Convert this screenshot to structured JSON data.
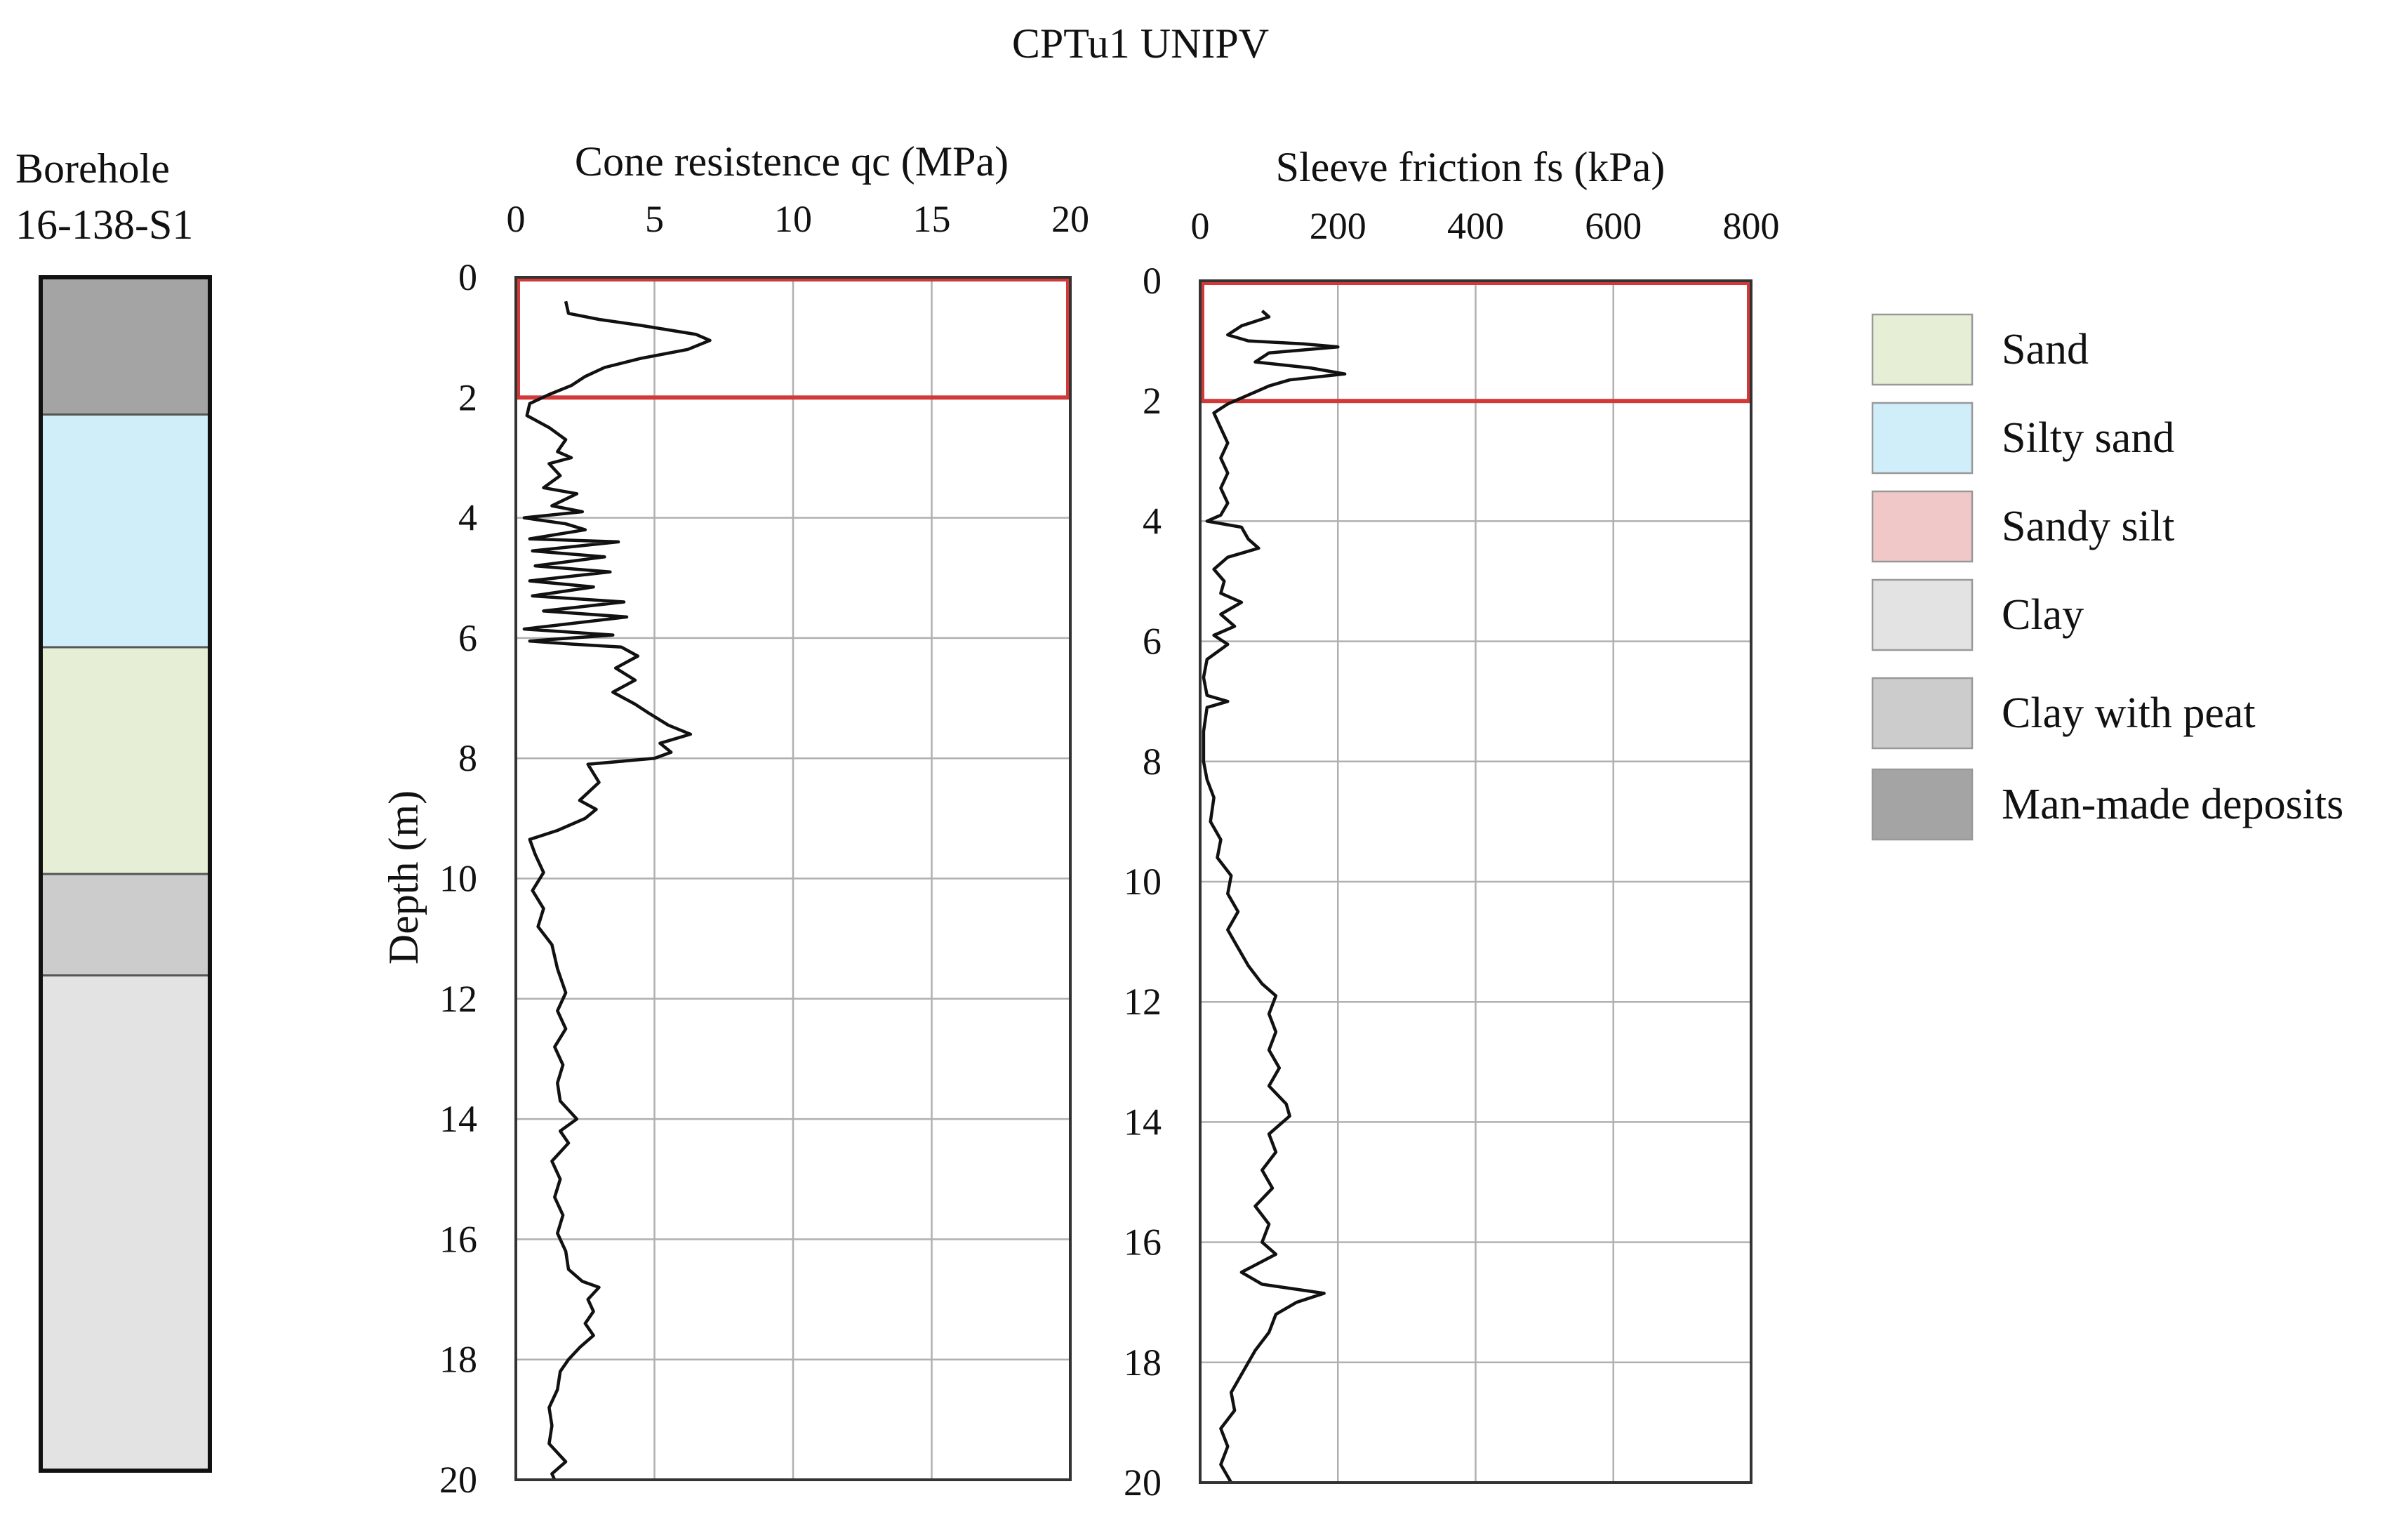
{
  "figure_title": "CPTu1 UNIPV",
  "colors": {
    "sand": "#e6efd5",
    "silty_sand": "#cfeef9",
    "sandy_silt": "#f1c8c8",
    "clay": "#e3e3e3",
    "clay_with_peat": "#cccccc",
    "man_made_deposits": "#a4a4a4",
    "highlight_box": "#d23a3a",
    "trace": "#111111",
    "grid": "#b0b0b0"
  },
  "chart_data": [
    {
      "type": "line",
      "title": "Cone resistence qc (MPa)",
      "xlabel": "",
      "ylabel": "Depth (m)",
      "xlim": [
        0,
        20
      ],
      "ylim": [
        0,
        20
      ],
      "y_inverted": true,
      "x_ticks": [
        0,
        5,
        10,
        15,
        20
      ],
      "y_ticks": [
        0,
        2,
        4,
        6,
        8,
        10,
        12,
        14,
        16,
        18,
        20
      ],
      "grid": true,
      "highlight_box": {
        "x": [
          0,
          20
        ],
        "y": [
          0,
          2
        ]
      },
      "series": [
        {
          "values": [
            [
              1.8,
              0.4
            ],
            [
              1.9,
              0.6
            ],
            [
              3.0,
              0.7
            ],
            [
              4.5,
              0.8
            ],
            [
              6.5,
              0.95
            ],
            [
              7.0,
              1.05
            ],
            [
              6.2,
              1.2
            ],
            [
              4.5,
              1.35
            ],
            [
              3.2,
              1.5
            ],
            [
              2.5,
              1.65
            ],
            [
              2.0,
              1.8
            ],
            [
              1.2,
              1.95
            ],
            [
              0.5,
              2.1
            ],
            [
              0.4,
              2.3
            ],
            [
              1.2,
              2.5
            ],
            [
              1.8,
              2.7
            ],
            [
              1.5,
              2.9
            ],
            [
              2.0,
              3.0
            ],
            [
              1.2,
              3.1
            ],
            [
              1.6,
              3.3
            ],
            [
              1.0,
              3.5
            ],
            [
              2.2,
              3.6
            ],
            [
              1.3,
              3.8
            ],
            [
              2.4,
              3.9
            ],
            [
              0.3,
              4.0
            ],
            [
              1.8,
              4.1
            ],
            [
              2.5,
              4.2
            ],
            [
              0.5,
              4.35
            ],
            [
              3.7,
              4.4
            ],
            [
              0.6,
              4.55
            ],
            [
              3.2,
              4.65
            ],
            [
              0.7,
              4.8
            ],
            [
              3.4,
              4.9
            ],
            [
              0.5,
              5.05
            ],
            [
              2.8,
              5.15
            ],
            [
              0.6,
              5.3
            ],
            [
              3.9,
              5.4
            ],
            [
              1.0,
              5.55
            ],
            [
              4.0,
              5.65
            ],
            [
              0.3,
              5.85
            ],
            [
              3.5,
              5.95
            ],
            [
              0.5,
              6.05
            ],
            [
              2.0,
              6.1
            ],
            [
              3.8,
              6.15
            ],
            [
              4.4,
              6.3
            ],
            [
              3.6,
              6.5
            ],
            [
              4.3,
              6.7
            ],
            [
              3.5,
              6.9
            ],
            [
              4.3,
              7.1
            ],
            [
              4.8,
              7.25
            ],
            [
              5.5,
              7.45
            ],
            [
              6.3,
              7.6
            ],
            [
              5.2,
              7.75
            ],
            [
              5.6,
              7.9
            ],
            [
              5.0,
              8.0
            ],
            [
              2.6,
              8.1
            ],
            [
              3.0,
              8.4
            ],
            [
              2.3,
              8.7
            ],
            [
              2.9,
              8.85
            ],
            [
              2.5,
              9.0
            ],
            [
              1.5,
              9.2
            ],
            [
              0.5,
              9.35
            ],
            [
              0.7,
              9.6
            ],
            [
              1.0,
              9.9
            ],
            [
              0.6,
              10.2
            ],
            [
              1.0,
              10.5
            ],
            [
              0.8,
              10.8
            ],
            [
              1.3,
              11.1
            ],
            [
              1.5,
              11.5
            ],
            [
              1.8,
              11.9
            ],
            [
              1.5,
              12.2
            ],
            [
              1.8,
              12.5
            ],
            [
              1.4,
              12.8
            ],
            [
              1.7,
              13.1
            ],
            [
              1.5,
              13.4
            ],
            [
              1.6,
              13.7
            ],
            [
              2.2,
              14.0
            ],
            [
              1.6,
              14.2
            ],
            [
              1.9,
              14.4
            ],
            [
              1.3,
              14.7
            ],
            [
              1.6,
              15.0
            ],
            [
              1.4,
              15.3
            ],
            [
              1.7,
              15.6
            ],
            [
              1.5,
              15.9
            ],
            [
              1.8,
              16.2
            ],
            [
              1.9,
              16.5
            ],
            [
              2.4,
              16.7
            ],
            [
              3.0,
              16.8
            ],
            [
              2.6,
              17.0
            ],
            [
              2.8,
              17.2
            ],
            [
              2.5,
              17.4
            ],
            [
              2.8,
              17.6
            ],
            [
              2.3,
              17.8
            ],
            [
              1.9,
              18.0
            ],
            [
              1.6,
              18.2
            ],
            [
              1.5,
              18.5
            ],
            [
              1.2,
              18.8
            ],
            [
              1.3,
              19.1
            ],
            [
              1.2,
              19.4
            ],
            [
              1.8,
              19.7
            ],
            [
              1.3,
              19.9
            ],
            [
              1.4,
              20.0
            ]
          ]
        }
      ]
    },
    {
      "type": "line",
      "title": "Sleeve friction fs (kPa)",
      "xlabel": "",
      "ylabel": "",
      "xlim": [
        0,
        800
      ],
      "ylim": [
        0,
        20
      ],
      "y_inverted": true,
      "x_ticks": [
        0,
        200,
        400,
        600,
        800
      ],
      "y_ticks": [
        0,
        2,
        4,
        6,
        8,
        10,
        12,
        14,
        16,
        18,
        20
      ],
      "grid": true,
      "highlight_box": {
        "x": [
          0,
          800
        ],
        "y": [
          0,
          2
        ]
      },
      "series": [
        {
          "values": [
            [
              90,
              0.5
            ],
            [
              100,
              0.6
            ],
            [
              60,
              0.75
            ],
            [
              40,
              0.9
            ],
            [
              70,
              1.0
            ],
            [
              150,
              1.05
            ],
            [
              200,
              1.1
            ],
            [
              100,
              1.2
            ],
            [
              80,
              1.35
            ],
            [
              160,
              1.45
            ],
            [
              210,
              1.55
            ],
            [
              130,
              1.65
            ],
            [
              100,
              1.75
            ],
            [
              80,
              1.85
            ],
            [
              60,
              1.95
            ],
            [
              40,
              2.05
            ],
            [
              20,
              2.2
            ],
            [
              30,
              2.45
            ],
            [
              40,
              2.7
            ],
            [
              30,
              2.95
            ],
            [
              40,
              3.2
            ],
            [
              30,
              3.45
            ],
            [
              40,
              3.7
            ],
            [
              30,
              3.9
            ],
            [
              10,
              4.0
            ],
            [
              60,
              4.1
            ],
            [
              70,
              4.3
            ],
            [
              85,
              4.45
            ],
            [
              40,
              4.6
            ],
            [
              20,
              4.8
            ],
            [
              35,
              5.0
            ],
            [
              30,
              5.2
            ],
            [
              60,
              5.35
            ],
            [
              30,
              5.55
            ],
            [
              50,
              5.75
            ],
            [
              20,
              5.9
            ],
            [
              40,
              6.05
            ],
            [
              10,
              6.3
            ],
            [
              5,
              6.6
            ],
            [
              10,
              6.9
            ],
            [
              40,
              7.0
            ],
            [
              10,
              7.1
            ],
            [
              5,
              7.5
            ],
            [
              5,
              8.0
            ],
            [
              10,
              8.3
            ],
            [
              20,
              8.6
            ],
            [
              15,
              9.0
            ],
            [
              30,
              9.3
            ],
            [
              25,
              9.6
            ],
            [
              45,
              9.9
            ],
            [
              40,
              10.2
            ],
            [
              55,
              10.5
            ],
            [
              40,
              10.8
            ],
            [
              55,
              11.1
            ],
            [
              70,
              11.4
            ],
            [
              90,
              11.7
            ],
            [
              110,
              11.9
            ],
            [
              100,
              12.2
            ],
            [
              110,
              12.5
            ],
            [
              100,
              12.8
            ],
            [
              115,
              13.1
            ],
            [
              100,
              13.4
            ],
            [
              125,
              13.7
            ],
            [
              130,
              13.9
            ],
            [
              100,
              14.2
            ],
            [
              110,
              14.5
            ],
            [
              90,
              14.8
            ],
            [
              105,
              15.1
            ],
            [
              80,
              15.4
            ],
            [
              100,
              15.7
            ],
            [
              90,
              16.0
            ],
            [
              110,
              16.2
            ],
            [
              60,
              16.5
            ],
            [
              90,
              16.7
            ],
            [
              180,
              16.85
            ],
            [
              140,
              17.0
            ],
            [
              110,
              17.2
            ],
            [
              100,
              17.5
            ],
            [
              80,
              17.8
            ],
            [
              60,
              18.2
            ],
            [
              45,
              18.5
            ],
            [
              50,
              18.8
            ],
            [
              30,
              19.1
            ],
            [
              40,
              19.4
            ],
            [
              30,
              19.7
            ],
            [
              40,
              19.9
            ],
            [
              45,
              20.0
            ]
          ]
        }
      ]
    }
  ],
  "borehole": {
    "label_line1": "Borehole",
    "label_line2": "16-138-S1",
    "layers": [
      {
        "soil": "man_made_deposits",
        "top": 0,
        "bottom": 2.3
      },
      {
        "soil": "silty_sand",
        "top": 2.3,
        "bottom": 6.2
      },
      {
        "soil": "sand",
        "top": 6.2,
        "bottom": 10.0
      },
      {
        "soil": "clay_with_peat",
        "top": 10.0,
        "bottom": 11.7
      },
      {
        "soil": "clay",
        "top": 11.7,
        "bottom": 20.0
      }
    ]
  },
  "legend": {
    "items": [
      {
        "soil": "sand",
        "label": "Sand"
      },
      {
        "soil": "silty_sand",
        "label": "Silty sand"
      },
      {
        "soil": "sandy_silt",
        "label": "Sandy silt"
      },
      {
        "soil": "clay",
        "label": "Clay"
      },
      {
        "soil": "clay_with_peat",
        "label": "Clay with peat"
      },
      {
        "soil": "man_made_deposits",
        "label": "Man-made deposits"
      }
    ]
  }
}
